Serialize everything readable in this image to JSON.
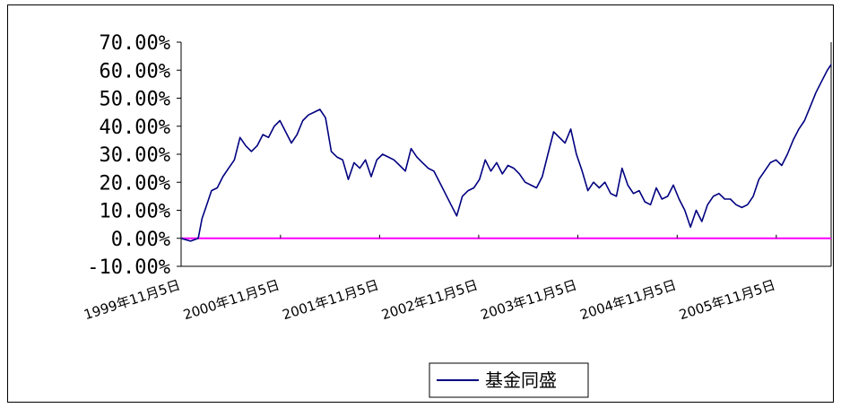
{
  "chart_data": {
    "type": "line",
    "title": "",
    "xlabel": "",
    "ylabel": "",
    "ylim": [
      -0.1,
      0.7
    ],
    "yticks": [
      -0.1,
      0.0,
      0.1,
      0.2,
      0.3,
      0.4,
      0.5,
      0.6,
      0.7
    ],
    "ytick_labels": [
      "-10.00%",
      "0.00%",
      "10.00%",
      "20.00%",
      "30.00%",
      "40.00%",
      "50.00%",
      "60.00%",
      "70.00%"
    ],
    "xticks": [
      "1999-11-05",
      "2000-11-05",
      "2001-11-05",
      "2002-11-05",
      "2003-11-05",
      "2004-11-05",
      "2005-11-05"
    ],
    "xtick_labels": [
      "1999年11月5日",
      "2000年11月5日",
      "2001年11月5日",
      "2002年11月5日",
      "2003年11月5日",
      "2004年11月5日",
      "2005年11月5日"
    ],
    "xlim": [
      "1999-11-05",
      "2006-05-26"
    ],
    "legend_position": "bottom",
    "zero_line_color": "#ff00ff",
    "series": [
      {
        "name": "基金同盛",
        "color": "#000080",
        "x": [
          "1999-11-05",
          "1999-12-10",
          "2000-01-07",
          "2000-01-21",
          "2000-02-04",
          "2000-02-25",
          "2000-03-17",
          "2000-04-07",
          "2000-04-28",
          "2000-05-19",
          "2000-06-09",
          "2000-06-30",
          "2000-07-21",
          "2000-08-11",
          "2000-09-01",
          "2000-09-22",
          "2000-10-13",
          "2000-11-03",
          "2000-11-24",
          "2000-12-15",
          "2001-01-05",
          "2001-01-26",
          "2001-02-16",
          "2001-03-09",
          "2001-03-30",
          "2001-04-20",
          "2001-05-11",
          "2001-06-01",
          "2001-06-22",
          "2001-07-13",
          "2001-08-03",
          "2001-08-24",
          "2001-09-14",
          "2001-10-05",
          "2001-10-26",
          "2001-11-16",
          "2001-12-07",
          "2001-12-28",
          "2002-01-18",
          "2002-02-08",
          "2002-03-01",
          "2002-03-22",
          "2002-04-12",
          "2002-05-03",
          "2002-05-24",
          "2002-06-14",
          "2002-07-05",
          "2002-07-26",
          "2002-08-16",
          "2002-09-06",
          "2002-09-27",
          "2002-10-18",
          "2002-11-08",
          "2002-11-29",
          "2002-12-20",
          "2003-01-10",
          "2003-01-31",
          "2003-02-21",
          "2003-03-14",
          "2003-04-04",
          "2003-04-25",
          "2003-05-16",
          "2003-06-06",
          "2003-06-27",
          "2003-07-18",
          "2003-08-08",
          "2003-08-29",
          "2003-09-19",
          "2003-10-10",
          "2003-10-31",
          "2003-11-21",
          "2003-12-12",
          "2004-01-02",
          "2004-01-23",
          "2004-02-13",
          "2004-03-05",
          "2004-03-26",
          "2004-04-16",
          "2004-05-07",
          "2004-05-28",
          "2004-06-18",
          "2004-07-09",
          "2004-07-30",
          "2004-08-20",
          "2004-09-10",
          "2004-10-01",
          "2004-10-22",
          "2004-11-12",
          "2004-12-03",
          "2004-12-24",
          "2005-01-14",
          "2005-02-04",
          "2005-02-25",
          "2005-03-18",
          "2005-04-08",
          "2005-04-29",
          "2005-05-20",
          "2005-06-10",
          "2005-07-01",
          "2005-07-22",
          "2005-08-12",
          "2005-09-02",
          "2005-09-23",
          "2005-10-14",
          "2005-11-04",
          "2005-11-25",
          "2005-12-16",
          "2006-01-06",
          "2006-01-27",
          "2006-02-17",
          "2006-03-10",
          "2006-03-31",
          "2006-04-21",
          "2006-05-12",
          "2006-05-26"
        ],
        "values": [
          0.0,
          -0.01,
          0.0,
          0.07,
          0.11,
          0.17,
          0.18,
          0.22,
          0.25,
          0.28,
          0.36,
          0.33,
          0.31,
          0.33,
          0.37,
          0.36,
          0.4,
          0.42,
          0.38,
          0.34,
          0.37,
          0.42,
          0.44,
          0.45,
          0.46,
          0.43,
          0.31,
          0.29,
          0.28,
          0.21,
          0.27,
          0.25,
          0.28,
          0.22,
          0.28,
          0.3,
          0.29,
          0.28,
          0.26,
          0.24,
          0.32,
          0.29,
          0.27,
          0.25,
          0.24,
          0.2,
          0.16,
          0.12,
          0.08,
          0.15,
          0.17,
          0.18,
          0.21,
          0.28,
          0.24,
          0.27,
          0.23,
          0.26,
          0.25,
          0.23,
          0.2,
          0.19,
          0.18,
          0.22,
          0.3,
          0.38,
          0.36,
          0.34,
          0.39,
          0.3,
          0.24,
          0.17,
          0.2,
          0.18,
          0.2,
          0.16,
          0.15,
          0.25,
          0.19,
          0.16,
          0.17,
          0.13,
          0.12,
          0.18,
          0.14,
          0.15,
          0.19,
          0.14,
          0.1,
          0.04,
          0.1,
          0.06,
          0.12,
          0.15,
          0.16,
          0.14,
          0.14,
          0.12,
          0.11,
          0.12,
          0.15,
          0.21,
          0.24,
          0.27,
          0.28,
          0.26,
          0.3,
          0.35,
          0.39,
          0.42,
          0.47,
          0.52,
          0.56,
          0.6,
          0.62
        ]
      }
    ]
  }
}
